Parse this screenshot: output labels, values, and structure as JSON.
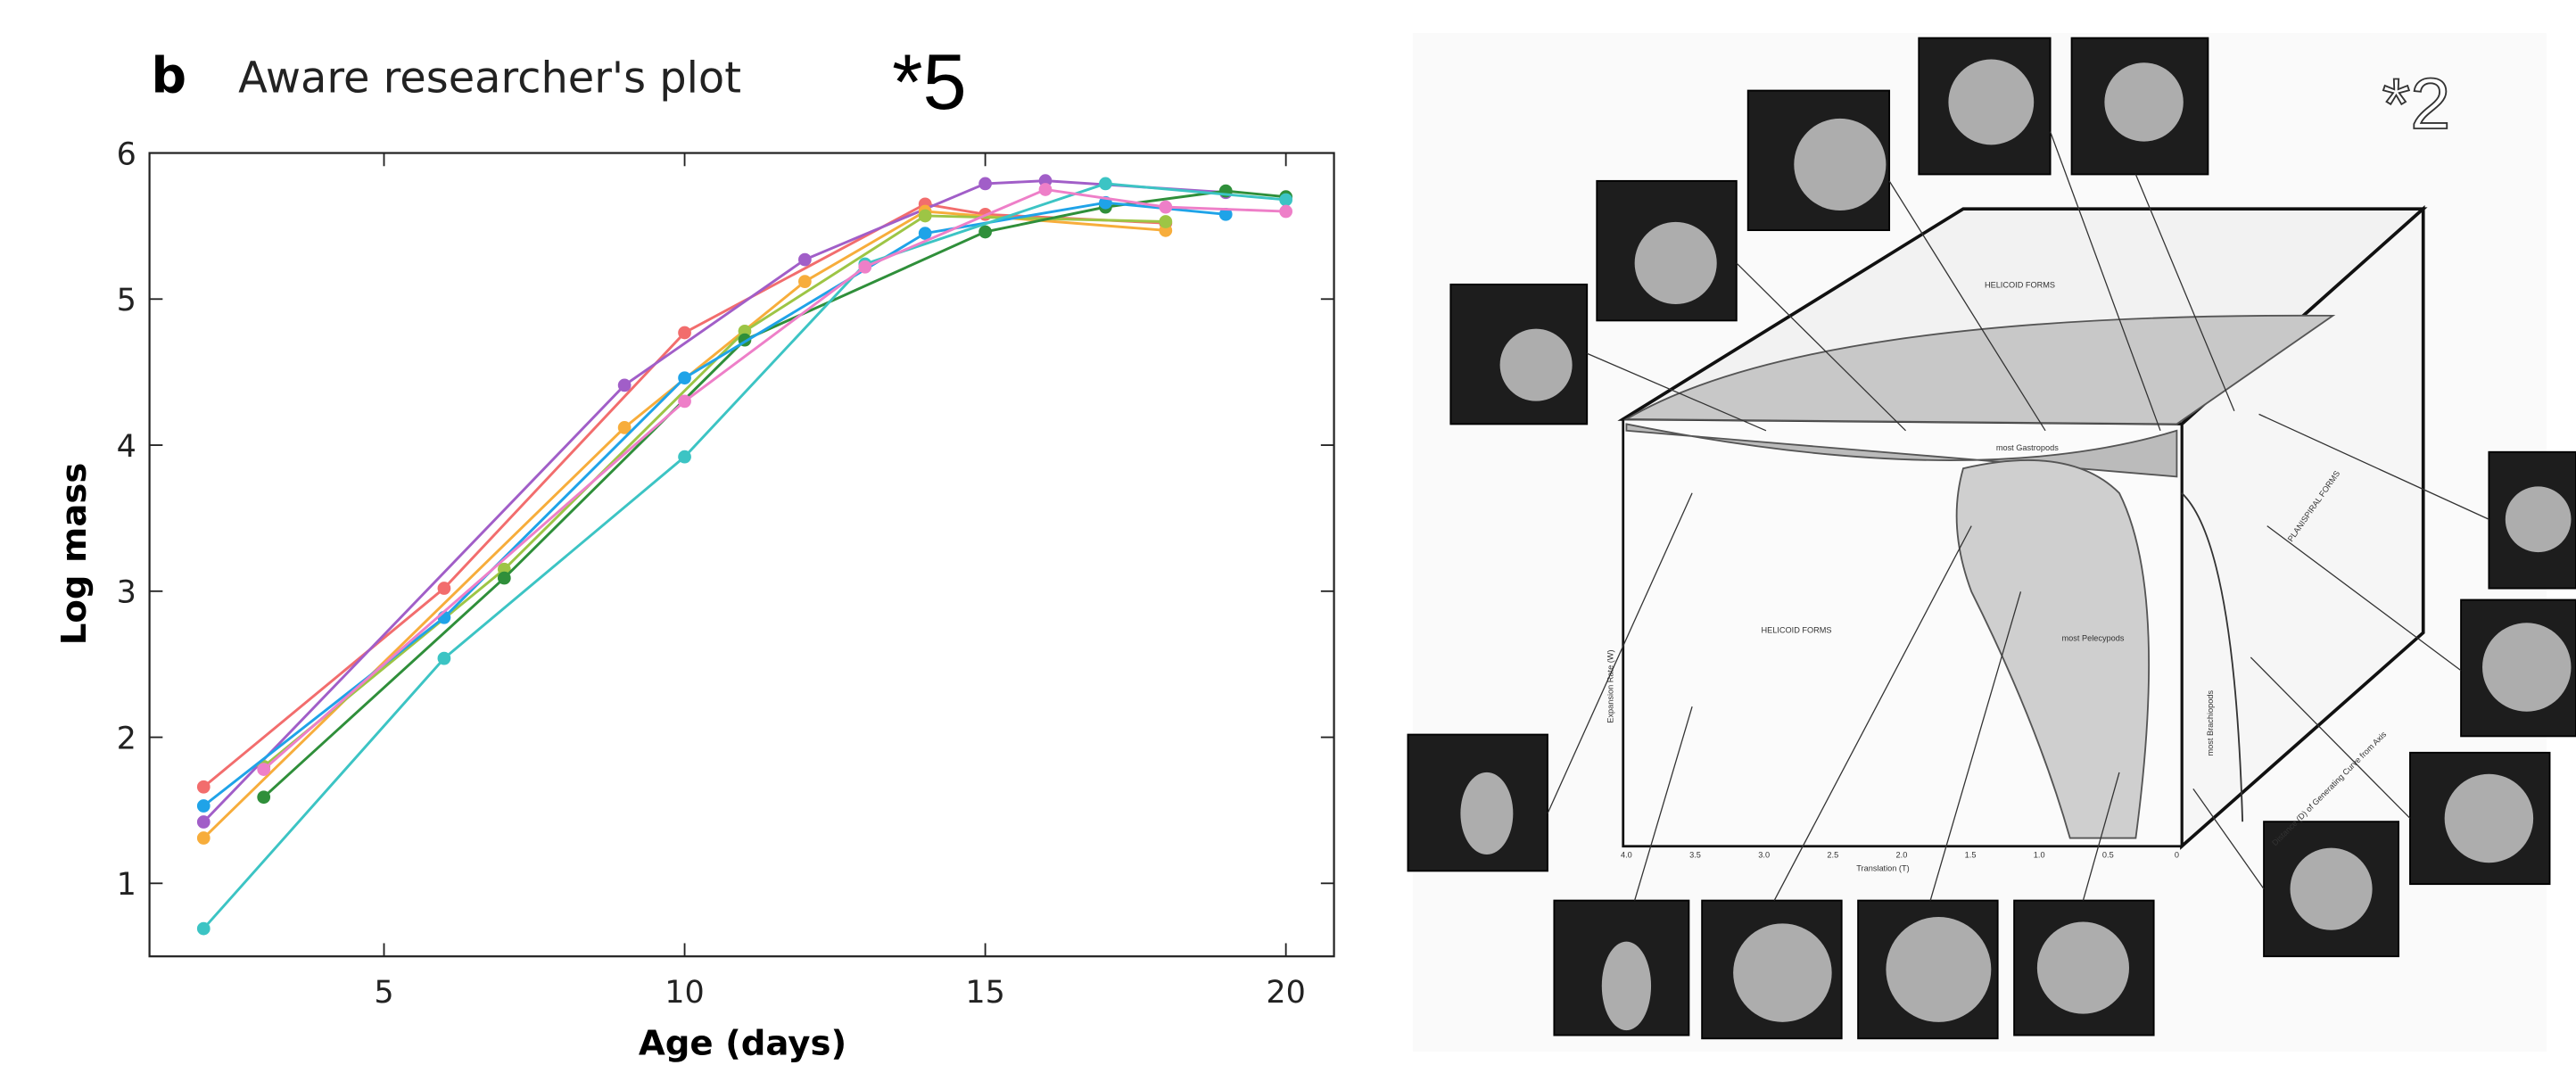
{
  "panel_label": "b",
  "chart_data": {
    "type": "line",
    "title": "Aware researcher's plot",
    "annotation": "*5",
    "x_label": "Age (days)",
    "y_label": "Log mass",
    "xlim": [
      1.1,
      20.8
    ],
    "ylim": [
      0.5,
      6
    ],
    "xticks": [
      5,
      10,
      15,
      20
    ],
    "yticks": [
      1,
      2,
      3,
      4,
      5,
      6
    ],
    "series": [
      {
        "color": "#f26d6d",
        "x": [
          2,
          6,
          10,
          14,
          15,
          18
        ],
        "values": [
          1.66,
          3.02,
          4.77,
          5.65,
          5.58,
          5.52
        ]
      },
      {
        "color": "#a15ec8",
        "x": [
          2,
          9,
          12,
          15,
          16,
          19
        ],
        "values": [
          1.42,
          4.41,
          5.27,
          5.79,
          5.81,
          5.73
        ]
      },
      {
        "color": "#f7ad3b",
        "x": [
          2,
          9,
          12,
          14,
          18
        ],
        "values": [
          1.31,
          4.12,
          5.12,
          5.6,
          5.47
        ]
      },
      {
        "color": "#9dc545",
        "x": [
          3,
          7,
          11,
          14,
          18
        ],
        "values": [
          1.8,
          3.15,
          4.78,
          5.57,
          5.53
        ]
      },
      {
        "color": "#2f8f3a",
        "x": [
          3,
          7,
          11,
          15,
          17,
          19,
          20
        ],
        "values": [
          1.59,
          3.09,
          4.72,
          5.46,
          5.63,
          5.74,
          5.7
        ]
      },
      {
        "color": "#1fa3e8",
        "x": [
          2,
          6,
          10,
          14,
          17,
          19
        ],
        "values": [
          1.53,
          2.82,
          4.46,
          5.45,
          5.66,
          5.58
        ]
      },
      {
        "color": "#3cc4c4",
        "x": [
          2,
          6,
          10,
          13,
          17,
          20
        ],
        "values": [
          0.69,
          2.54,
          3.92,
          5.24,
          5.79,
          5.68
        ]
      },
      {
        "color": "#ee7fc8",
        "x": [
          3,
          10,
          13,
          16,
          18,
          20
        ],
        "values": [
          1.78,
          4.3,
          5.22,
          5.75,
          5.63,
          5.6
        ]
      }
    ]
  },
  "diagram": {
    "marker": "*2",
    "labels": [
      "HELICOID FORMS",
      "most Gastropods",
      "HELICOID FORMS",
      "most Pelecypods",
      "PLANISPIRAL FORMS",
      "most Brachiopods",
      "Translation (T)",
      "Expansion Rate (W)",
      "Distance (D) of Generating Curve from Axis"
    ],
    "translation_ticks": [
      "4.0",
      "3.5",
      "3.0",
      "2.5",
      "2.0",
      "1.5",
      "1.0",
      "0.5",
      "0"
    ]
  }
}
